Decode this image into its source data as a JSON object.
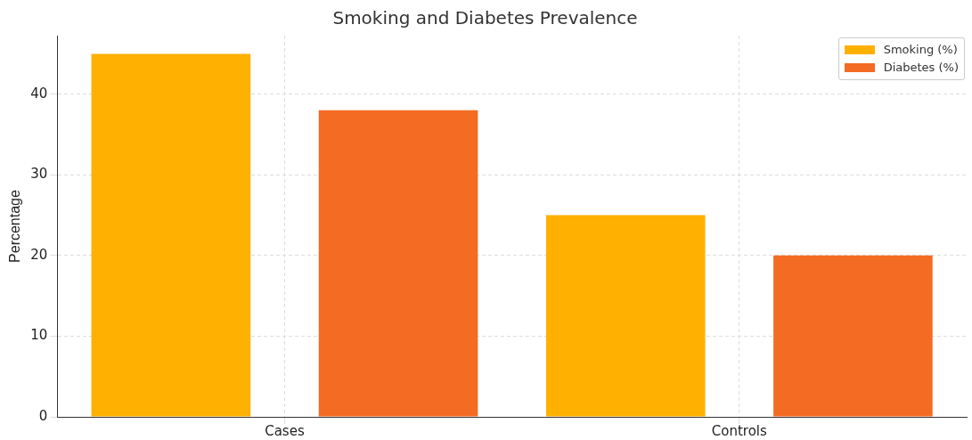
{
  "chart_data": {
    "type": "bar",
    "title": "Smoking and Diabetes Prevalence",
    "ylabel": "Percentage",
    "categories": [
      "Cases",
      "Controls"
    ],
    "series": [
      {
        "name": "Smoking (%)",
        "color": "#ffb000",
        "values": [
          45,
          25
        ]
      },
      {
        "name": "Diabetes (%)",
        "color": "#f46b23",
        "values": [
          38,
          20
        ]
      }
    ],
    "ylim": [
      0,
      47.25
    ],
    "yticks": [
      0,
      10,
      20,
      30,
      40
    ],
    "grid": true,
    "legend": "top right"
  }
}
